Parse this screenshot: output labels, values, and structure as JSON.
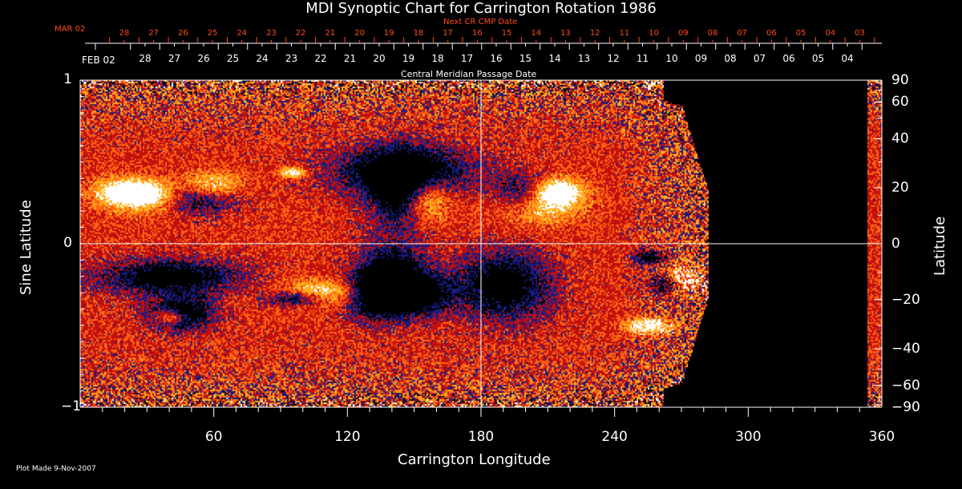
{
  "chart_data": {
    "type": "heatmap",
    "title": "MDI Synoptic Chart for Carrington Rotation 1986",
    "xlabel": "Carrington Longitude",
    "ylabel_left": "Sine Latitude",
    "ylabel_right": "Latitude",
    "xlim": [
      0,
      360
    ],
    "ylim": [
      -1,
      1
    ],
    "x_ticks": [
      "60",
      "120",
      "180",
      "240",
      "300",
      "360"
    ],
    "x_tick_values": [
      60,
      120,
      180,
      240,
      300,
      360
    ],
    "y_ticks_left": [
      "1",
      "0",
      "−1"
    ],
    "y_tick_values_left": [
      1,
      0,
      -1
    ],
    "y_ticks_right": [
      "90",
      "60",
      "40",
      "20",
      "0",
      "−20",
      "−40",
      "−60",
      "−90"
    ],
    "y_tick_values_right": [
      90,
      60,
      40,
      20,
      0,
      -20,
      -40,
      -60,
      -90
    ],
    "data_coverage_longitude": [
      [
        0,
        282
      ],
      [
        353,
        360
      ]
    ],
    "colormap": [
      "#000000",
      "#1a1a80",
      "#c01010",
      "#ff6010",
      "#ffb020",
      "#ffffff"
    ],
    "top_axis_next": {
      "label": "Next CR CMP Date",
      "start_label": "MAR 02",
      "days": [
        "28",
        "27",
        "26",
        "25",
        "24",
        "23",
        "22",
        "21",
        "20",
        "19",
        "18",
        "17",
        "16",
        "15",
        "14",
        "13",
        "12",
        "11",
        "10",
        "09",
        "08",
        "07",
        "06",
        "05",
        "04",
        "03"
      ]
    },
    "top_axis_cmp": {
      "label": "Central Meridian Passage Date",
      "start_label": "FEB 02",
      "days": [
        "28",
        "27",
        "26",
        "25",
        "24",
        "23",
        "22",
        "21",
        "20",
        "19",
        "18",
        "17",
        "16",
        "15",
        "14",
        "13",
        "12",
        "11",
        "10",
        "09",
        "08",
        "07",
        "06",
        "05",
        "04"
      ]
    }
  },
  "footer": {
    "plot_made": "Plot Made  9-Nov-2007"
  }
}
